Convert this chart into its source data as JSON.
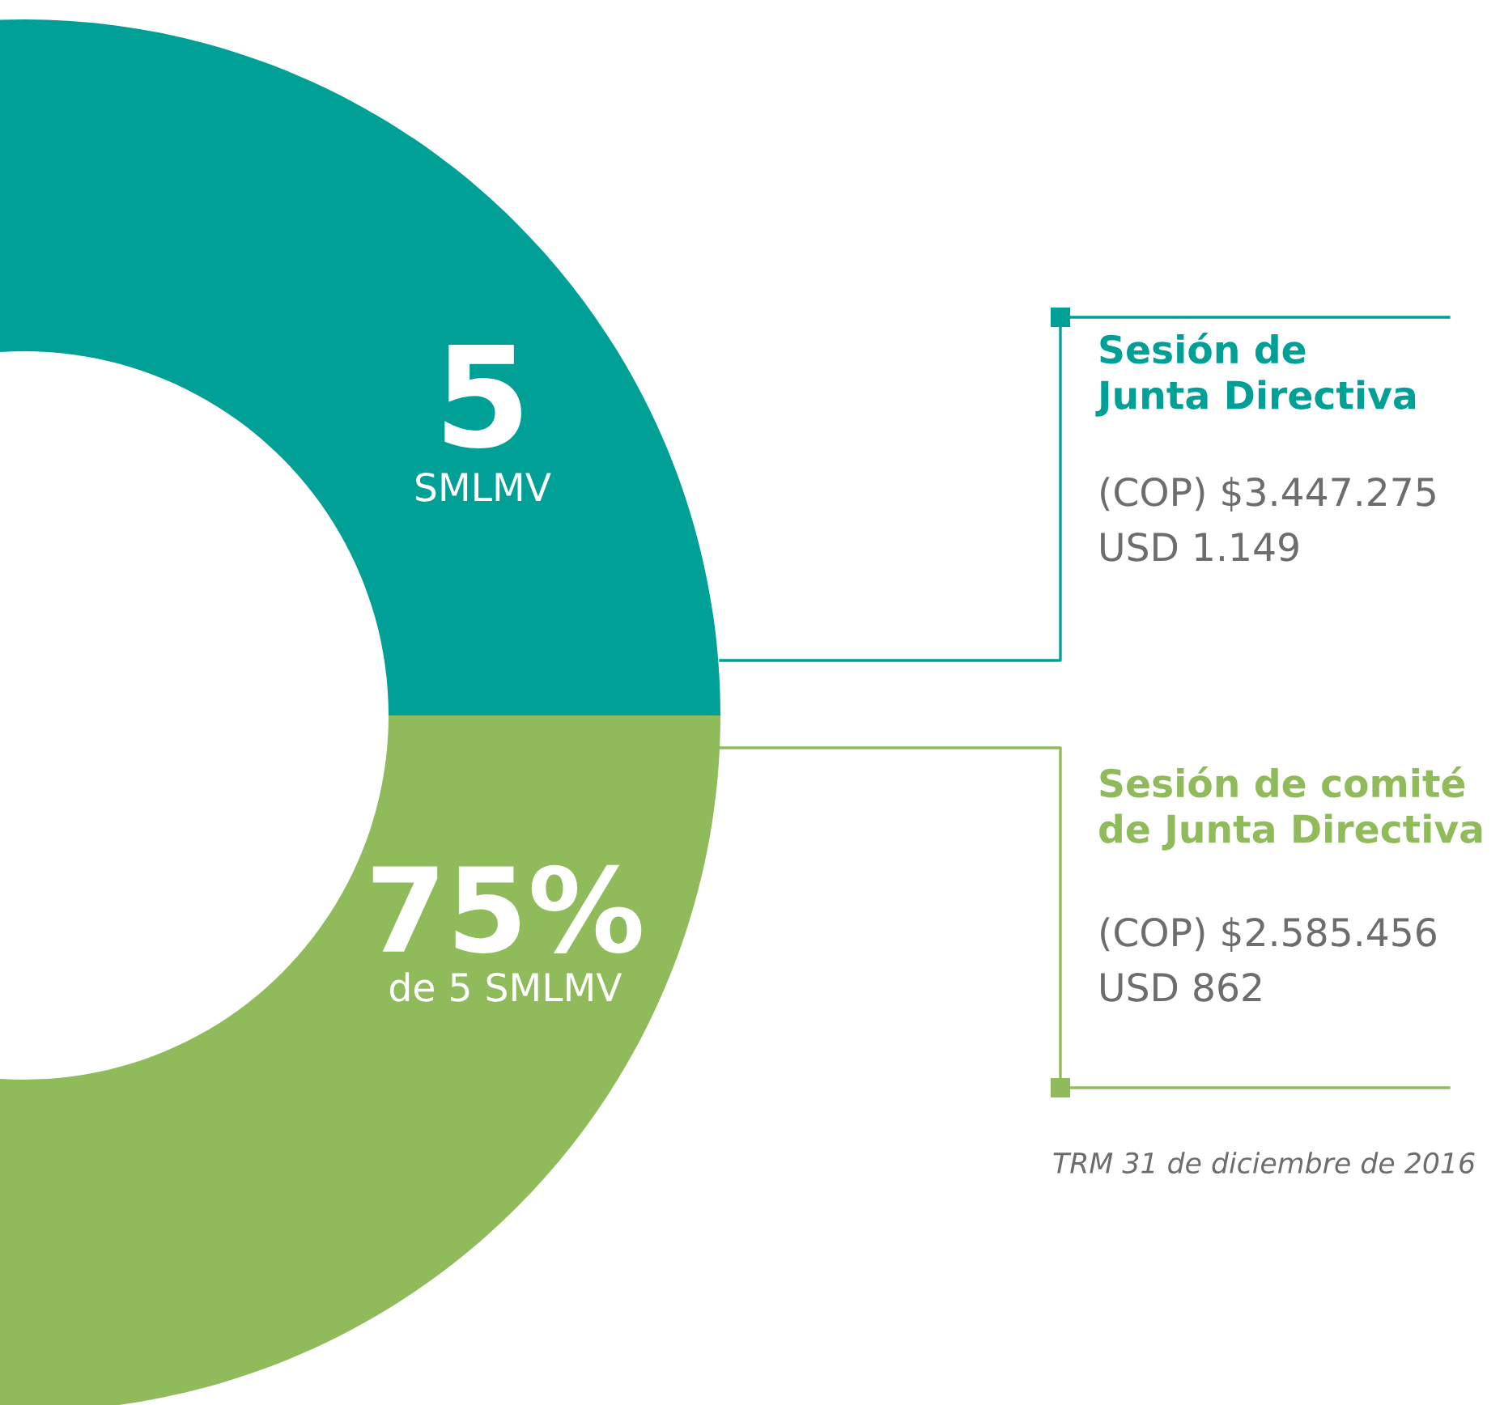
{
  "chart_data": {
    "type": "donut",
    "categories": [
      "Sesión de\nJunta Directiva",
      "Sesión de comité\nde Junta Directiva"
    ],
    "values": [
      50,
      50
    ],
    "colors": [
      "#00a097",
      "#8fbb5b"
    ],
    "annotations": [
      "5",
      "SMLMV",
      "75%",
      "de 5 SMLMV",
      "(COP) $3.447.275",
      "USD 1.149",
      "(COP) $2.585.456",
      "USD 862",
      "TRM 31 de diciembre de 2016"
    ]
  }
}
